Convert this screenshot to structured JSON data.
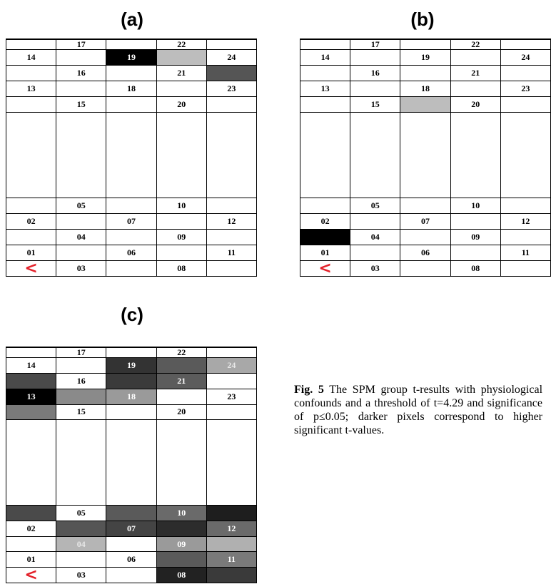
{
  "panels": [
    {
      "label": "(a)",
      "id": "a",
      "cells": [
        [
          "",
          "17",
          "",
          "22",
          ""
        ],
        [
          "14",
          "",
          "19",
          "",
          "24"
        ],
        [
          "",
          "16",
          "",
          "21",
          ""
        ],
        [
          "13",
          "",
          "18",
          "",
          "23"
        ],
        [
          "",
          "15",
          "",
          "20",
          ""
        ],
        [
          "",
          "",
          "",
          "",
          ""
        ],
        [
          "",
          "05",
          "",
          "10",
          ""
        ],
        [
          "02",
          "",
          "07",
          "",
          "12"
        ],
        [
          "",
          "04",
          "",
          "09",
          ""
        ],
        [
          "01",
          "",
          "06",
          "",
          "11"
        ],
        [
          "<",
          "03",
          "",
          "08",
          ""
        ]
      ],
      "shading": [
        [
          "#ffffff",
          "#ffffff",
          "#ffffff",
          "#ffffff",
          "#ffffff"
        ],
        [
          "#ffffff",
          "#ffffff",
          "#000000",
          "#bdbdbd",
          "#ffffff"
        ],
        [
          "#ffffff",
          "#ffffff",
          "#ffffff",
          "#ffffff",
          "#555555"
        ],
        [
          "#ffffff",
          "#ffffff",
          "#ffffff",
          "#ffffff",
          "#ffffff"
        ],
        [
          "#ffffff",
          "#ffffff",
          "#ffffff",
          "#ffffff",
          "#ffffff"
        ],
        [
          "#ffffff",
          "#ffffff",
          "#ffffff",
          "#ffffff",
          "#ffffff"
        ],
        [
          "#ffffff",
          "#ffffff",
          "#ffffff",
          "#ffffff",
          "#ffffff"
        ],
        [
          "#ffffff",
          "#ffffff",
          "#ffffff",
          "#ffffff",
          "#ffffff"
        ],
        [
          "#ffffff",
          "#ffffff",
          "#ffffff",
          "#ffffff",
          "#ffffff"
        ],
        [
          "#ffffff",
          "#ffffff",
          "#ffffff",
          "#ffffff",
          "#ffffff"
        ],
        [
          "#ffffff",
          "#ffffff",
          "#ffffff",
          "#ffffff",
          "#ffffff"
        ]
      ]
    },
    {
      "label": "(b)",
      "id": "b",
      "cells": [
        [
          "",
          "17",
          "",
          "22",
          ""
        ],
        [
          "14",
          "",
          "19",
          "",
          "24"
        ],
        [
          "",
          "16",
          "",
          "21",
          ""
        ],
        [
          "13",
          "",
          "18",
          "",
          "23"
        ],
        [
          "",
          "15",
          "",
          "20",
          ""
        ],
        [
          "",
          "",
          "",
          "",
          ""
        ],
        [
          "",
          "05",
          "",
          "10",
          ""
        ],
        [
          "02",
          "",
          "07",
          "",
          "12"
        ],
        [
          "",
          "04",
          "",
          "09",
          ""
        ],
        [
          "01",
          "",
          "06",
          "",
          "11"
        ],
        [
          "<",
          "03",
          "",
          "08",
          ""
        ]
      ],
      "shading": [
        [
          "#ffffff",
          "#ffffff",
          "#ffffff",
          "#ffffff",
          "#ffffff"
        ],
        [
          "#ffffff",
          "#ffffff",
          "#ffffff",
          "#ffffff",
          "#ffffff"
        ],
        [
          "#ffffff",
          "#ffffff",
          "#ffffff",
          "#ffffff",
          "#ffffff"
        ],
        [
          "#ffffff",
          "#ffffff",
          "#ffffff",
          "#ffffff",
          "#ffffff"
        ],
        [
          "#ffffff",
          "#ffffff",
          "#bdbdbd",
          "#ffffff",
          "#ffffff"
        ],
        [
          "#ffffff",
          "#ffffff",
          "#ffffff",
          "#ffffff",
          "#ffffff"
        ],
        [
          "#ffffff",
          "#ffffff",
          "#ffffff",
          "#ffffff",
          "#ffffff"
        ],
        [
          "#ffffff",
          "#ffffff",
          "#ffffff",
          "#ffffff",
          "#ffffff"
        ],
        [
          "#000000",
          "#ffffff",
          "#ffffff",
          "#ffffff",
          "#ffffff"
        ],
        [
          "#ffffff",
          "#ffffff",
          "#ffffff",
          "#ffffff",
          "#ffffff"
        ],
        [
          "#ffffff",
          "#ffffff",
          "#ffffff",
          "#ffffff",
          "#ffffff"
        ]
      ]
    },
    {
      "label": "(c)",
      "id": "c",
      "cells": [
        [
          "",
          "17",
          "",
          "22",
          ""
        ],
        [
          "14",
          "",
          "19",
          "",
          "24"
        ],
        [
          "",
          "16",
          "",
          "21",
          ""
        ],
        [
          "13",
          "",
          "18",
          "",
          "23"
        ],
        [
          "",
          "15",
          "",
          "20",
          ""
        ],
        [
          "",
          "",
          "",
          "",
          ""
        ],
        [
          "",
          "05",
          "",
          "10",
          ""
        ],
        [
          "02",
          "",
          "07",
          "",
          "12"
        ],
        [
          "",
          "04",
          "",
          "09",
          ""
        ],
        [
          "01",
          "",
          "06",
          "",
          "11"
        ],
        [
          "<",
          "03",
          "",
          "08",
          ""
        ]
      ],
      "shading": [
        [
          "#ffffff",
          "#ffffff",
          "#ffffff",
          "#ffffff",
          "#ffffff"
        ],
        [
          "#ffffff",
          "#ffffff",
          "#333333",
          "#5a5a5a",
          "#a8a8a8"
        ],
        [
          "#4a4a4a",
          "#ffffff",
          "#3a3a3a",
          "#5c5c5c",
          "#ffffff"
        ],
        [
          "#000000",
          "#8a8a8a",
          "#9a9a9a",
          "#ffffff",
          "#ffffff"
        ],
        [
          "#7a7a7a",
          "#ffffff",
          "#ffffff",
          "#ffffff",
          "#ffffff"
        ],
        [
          "#ffffff",
          "#ffffff",
          "#ffffff",
          "#ffffff",
          "#ffffff"
        ],
        [
          "#4a4a4a",
          "#ffffff",
          "#5a5a5a",
          "#6a6a6a",
          "#1e1e1e"
        ],
        [
          "#ffffff",
          "#555555",
          "#444444",
          "#2c2c2c",
          "#6a6a6a"
        ],
        [
          "#ffffff",
          "#b5b5b5",
          "#ffffff",
          "#9a9a9a",
          "#b0b0b0"
        ],
        [
          "#ffffff",
          "#ffffff",
          "#ffffff",
          "#5a5a5a",
          "#7a7a7a"
        ],
        [
          "#ffffff",
          "#ffffff",
          "#ffffff",
          "#222222",
          "#3a3a3a"
        ]
      ]
    }
  ],
  "caption": {
    "fig": "Fig. 5",
    "text": " The SPM group t-results with physiological confounds and a threshold of t=4.29 and significance of p≤0.05; darker pixels correspond to higher significant t-values."
  }
}
